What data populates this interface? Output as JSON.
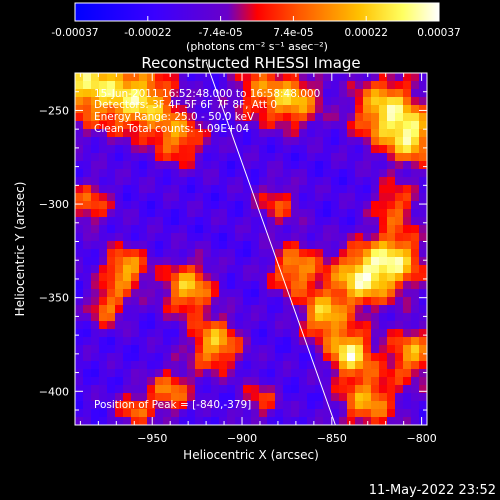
{
  "colorbar": {
    "label": "(photons cm⁻² s⁻¹ asec⁻²)",
    "ticks": [
      "-0.00037",
      "-0.00022",
      "-7.4e-05",
      "7.4e-05",
      "0.00022",
      "0.00037"
    ],
    "stops": [
      "#0000ff",
      "#3a00ff",
      "#6a00c8",
      "#ff0000",
      "#ff5a00",
      "#ffc000",
      "#ffff60",
      "#ffffff"
    ]
  },
  "image_header": {
    "time_range": "15-Jun-2011 16:52:48.000 to 16:58:48.000",
    "detectors": "Detectors: 3F 4F 5F 6F 7F 8F, Att 0",
    "energy_range": "Energy Range: 25.0 - 50.0 keV",
    "clean": "Clean     Total counts: 1.09E+04"
  },
  "peak_label": "Position of Peak = [-840,-379]",
  "timestamp": "11-May-2022 23:52",
  "chart_data": {
    "type": "heatmap",
    "title": "Reconstructed RHESSI Image",
    "xlabel": "Heliocentric X (arcsec)",
    "ylabel": "Heliocentric Y (arcsec)",
    "xlim": [
      -993,
      -797
    ],
    "ylim": [
      -418,
      -230
    ],
    "xticks": [
      -950,
      -900,
      -850,
      -800
    ],
    "yticks": [
      -250,
      -300,
      -350,
      -400
    ],
    "colorbar_range": [
      -0.00037,
      0.00037
    ],
    "limb_line": [
      [
        -920,
        -224
      ],
      [
        -848,
        -418
      ]
    ],
    "peak": [
      -840,
      -379
    ]
  }
}
